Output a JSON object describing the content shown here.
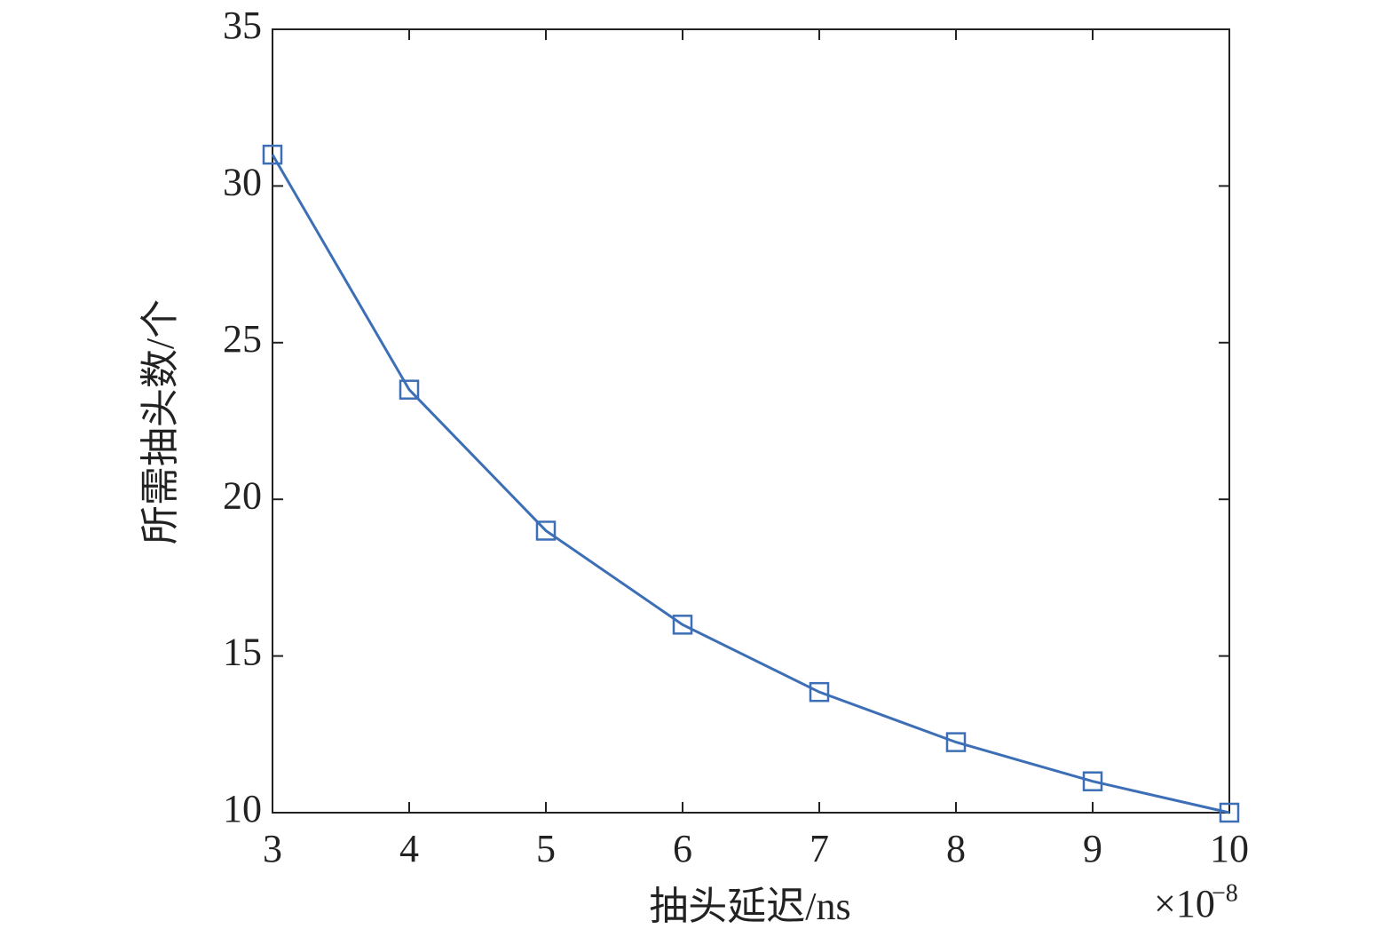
{
  "chart_data": {
    "type": "line",
    "x_label": "抽头延迟/ns",
    "y_label": "所需抽头数/个",
    "x_multiplier": {
      "base": "×10",
      "exponent": "−8"
    },
    "x": [
      3,
      4,
      5,
      6,
      7,
      8,
      9,
      10
    ],
    "series": [
      {
        "color": "#3d6fb6",
        "marker": "square",
        "values": [
          31,
          23.5,
          19,
          16,
          13.85,
          12.25,
          11,
          10
        ]
      }
    ],
    "xlim": [
      3,
      10
    ],
    "xticks": [
      3,
      4,
      5,
      6,
      7,
      8,
      9,
      10
    ],
    "ylim": [
      10,
      35
    ],
    "yticks": [
      10,
      15,
      20,
      25,
      30,
      35
    ],
    "grid": false
  }
}
